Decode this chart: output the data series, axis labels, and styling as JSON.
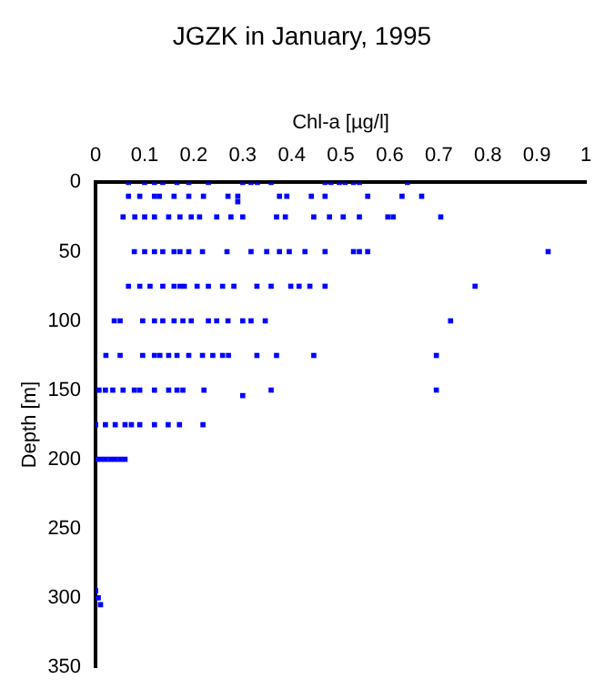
{
  "chart_data": {
    "type": "scatter",
    "title": "JGZK in January, 1995",
    "xlabel": "Chl-a [µg/l]",
    "ylabel": "Depth [m]",
    "xlim": [
      0,
      1
    ],
    "xticks": [
      0,
      0.1,
      0.2,
      0.3,
      0.4,
      0.5,
      0.6,
      0.7,
      0.8,
      0.9,
      1
    ],
    "ylim": [
      350,
      0
    ],
    "yticks": [
      0,
      50,
      100,
      150,
      200,
      250,
      300,
      350
    ],
    "grid": false,
    "marker": "square",
    "series": [
      {
        "color": "#0000ff",
        "x": [
          0.067,
          0.1,
          0.12,
          0.137,
          0.166,
          0.19,
          0.23,
          0.3,
          0.317,
          0.33,
          0.358,
          0.468,
          0.48,
          0.497,
          0.509,
          0.526,
          0.538,
          0.636,
          0.067,
          0.09,
          0.12,
          0.13,
          0.16,
          0.19,
          0.22,
          0.27,
          0.29,
          0.375,
          0.39,
          0.44,
          0.468,
          0.555,
          0.625,
          0.665,
          0.29,
          0.056,
          0.08,
          0.1,
          0.12,
          0.149,
          0.172,
          0.195,
          0.212,
          0.247,
          0.276,
          0.3,
          0.369,
          0.387,
          0.445,
          0.477,
          0.505,
          0.538,
          0.596,
          0.607,
          0.704,
          0.079,
          0.1,
          0.12,
          0.137,
          0.16,
          0.172,
          0.19,
          0.218,
          0.268,
          0.317,
          0.349,
          0.375,
          0.395,
          0.427,
          0.468,
          0.526,
          0.538,
          0.555,
          0.923,
          0.067,
          0.09,
          0.111,
          0.137,
          0.16,
          0.172,
          0.181,
          0.207,
          0.23,
          0.259,
          0.282,
          0.329,
          0.358,
          0.398,
          0.415,
          0.437,
          0.468,
          0.774,
          0.038,
          0.05,
          0.096,
          0.12,
          0.137,
          0.16,
          0.178,
          0.195,
          0.23,
          0.247,
          0.27,
          0.3,
          0.317,
          0.346,
          0.724,
          0.021,
          0.05,
          0.096,
          0.12,
          0.131,
          0.149,
          0.166,
          0.19,
          0.218,
          0.239,
          0.259,
          0.271,
          0.329,
          0.369,
          0.445,
          0.695,
          0.007,
          0.02,
          0.035,
          0.056,
          0.079,
          0.09,
          0.12,
          0.149,
          0.166,
          0.178,
          0.221,
          0.3,
          0.358,
          0.695,
          0,
          0.02,
          0.04,
          0.06,
          0.073,
          0.09,
          0.12,
          0.148,
          0.171,
          0.219,
          0,
          0.01,
          0.02,
          0.03,
          0.04,
          0.05,
          0.06,
          0,
          0.005,
          0.01,
          0.005
        ],
        "values": [
          0,
          0,
          0,
          0,
          0,
          0,
          0,
          0,
          0,
          0,
          0,
          0,
          0,
          0,
          0,
          0,
          0,
          0,
          10,
          10,
          10,
          10,
          10,
          10,
          10,
          10,
          10,
          10,
          10,
          10,
          10,
          10,
          10,
          10,
          14,
          25,
          25,
          25,
          25,
          25,
          25,
          25,
          25,
          25,
          25,
          25,
          25,
          25,
          25,
          25,
          25,
          25,
          25,
          25,
          25,
          50,
          50,
          50,
          50,
          50,
          50,
          50,
          50,
          50,
          50,
          50,
          50,
          50,
          50,
          50,
          50,
          50,
          50,
          50,
          75,
          75,
          75,
          75,
          75,
          75,
          75,
          75,
          75,
          75,
          75,
          75,
          75,
          75,
          75,
          75,
          75,
          75,
          100,
          100,
          100,
          100,
          100,
          100,
          100,
          100,
          100,
          100,
          100,
          100,
          100,
          100,
          100,
          125,
          125,
          125,
          125,
          125,
          125,
          125,
          125,
          125,
          125,
          125,
          125,
          125,
          125,
          125,
          125,
          150,
          150,
          150,
          150,
          150,
          150,
          150,
          150,
          150,
          150,
          150,
          154,
          150,
          150,
          175,
          175,
          175,
          175,
          175,
          175,
          175,
          175,
          175,
          175,
          200,
          200,
          200,
          200,
          200,
          200,
          200,
          295,
          300,
          305,
          300
        ]
      }
    ]
  }
}
